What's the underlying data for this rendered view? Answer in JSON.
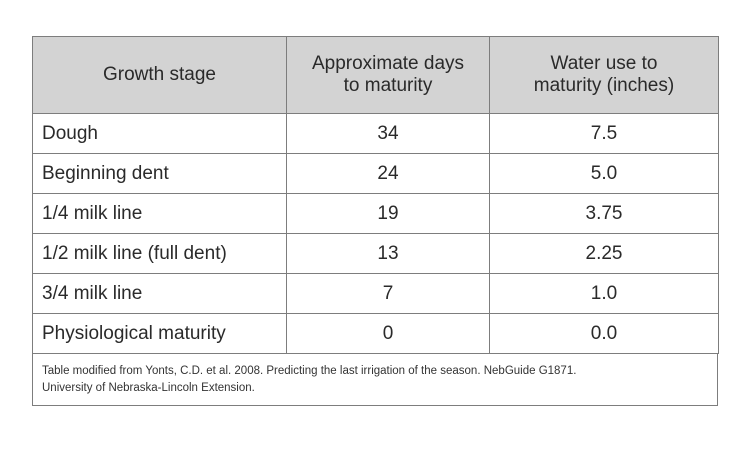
{
  "table": {
    "headers": {
      "stage": "Growth stage",
      "days_line1": "Approximate days",
      "days_line2": "to maturity",
      "water_line1": "Water use to",
      "water_line2": "maturity (inches)"
    },
    "rows": [
      {
        "stage": "Dough",
        "days": "34",
        "water": "7.5"
      },
      {
        "stage": "Beginning dent",
        "days": "24",
        "water": "5.0"
      },
      {
        "stage": "1/4 milk line",
        "days": "19",
        "water": "3.75"
      },
      {
        "stage": "1/2 milk line (full dent)",
        "days": "13",
        "water": "2.25"
      },
      {
        "stage": "3/4 milk line",
        "days": "7",
        "water": "1.0"
      },
      {
        "stage": "Physiological maturity",
        "days": "0",
        "water": "0.0"
      }
    ]
  },
  "footnote": {
    "line1": "Table modified from Yonts, C.D. et al. 2008. Predicting the last irrigation of the season. NebGuide G1871.",
    "line2": "University of Nebraska-Lincoln Extension."
  },
  "colors": {
    "header_background": "#d3d3d3",
    "border": "#7d7d7d"
  }
}
